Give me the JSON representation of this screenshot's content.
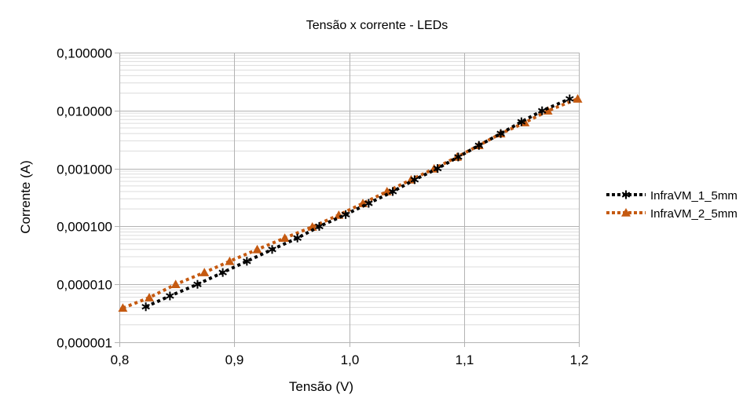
{
  "chart_data": {
    "type": "line",
    "title": "Tensão x corrente - LEDs",
    "xlabel": "Tensão (V)",
    "ylabel": "Corrente (A)",
    "xscale": "linear",
    "yscale": "log",
    "xlim": [
      0.8,
      1.2
    ],
    "ylim": [
      1e-06,
      0.1
    ],
    "x_ticks": [
      0.8,
      0.9,
      1.0,
      1.1,
      1.2
    ],
    "x_tick_labels": [
      "0,8",
      "0,9",
      "1,0",
      "1,1",
      "1,2"
    ],
    "y_ticks": [
      0.1,
      0.01,
      0.001,
      0.0001,
      1e-05,
      1e-06
    ],
    "y_tick_labels": [
      "0,100000",
      "0,010000",
      "0,001000",
      "0,000100",
      "0,000010",
      "0,000001"
    ],
    "grid": {
      "major": true,
      "minor_y": true
    },
    "legend_position": "right",
    "series": [
      {
        "name": "InfraVM_1_5mm",
        "color": "#000000",
        "marker": "asterisk",
        "line_style": "dotted",
        "x": [
          0.823,
          0.844,
          0.868,
          0.89,
          0.911,
          0.933,
          0.955,
          0.974,
          0.997,
          1.017,
          1.038,
          1.057,
          1.077,
          1.095,
          1.113,
          1.132,
          1.15,
          1.168,
          1.192
        ],
        "y": [
          4.1e-06,
          6.3e-06,
          1e-05,
          1.6e-05,
          2.5e-05,
          4e-05,
          6.3e-05,
          0.0001,
          0.00016,
          0.00025,
          0.0004,
          0.00064,
          0.001,
          0.00158,
          0.0025,
          0.004,
          0.0064,
          0.0099,
          0.0159
        ]
      },
      {
        "name": "InfraVM_2_5mm",
        "color": "#c55a11",
        "marker": "triangle",
        "line_style": "dotted",
        "x": [
          0.803,
          0.826,
          0.849,
          0.874,
          0.896,
          0.92,
          0.944,
          0.968,
          0.991,
          1.012,
          1.033,
          1.054,
          1.074,
          1.094,
          1.113,
          1.132,
          1.153,
          1.173,
          1.199
        ],
        "y": [
          3.9e-06,
          5.9e-06,
          1e-05,
          1.6e-05,
          2.5e-05,
          4e-05,
          6.3e-05,
          9.8e-05,
          0.000157,
          0.00025,
          0.0004,
          0.00064,
          0.00099,
          0.00158,
          0.0025,
          0.004,
          0.0062,
          0.0099,
          0.0159
        ]
      }
    ]
  }
}
